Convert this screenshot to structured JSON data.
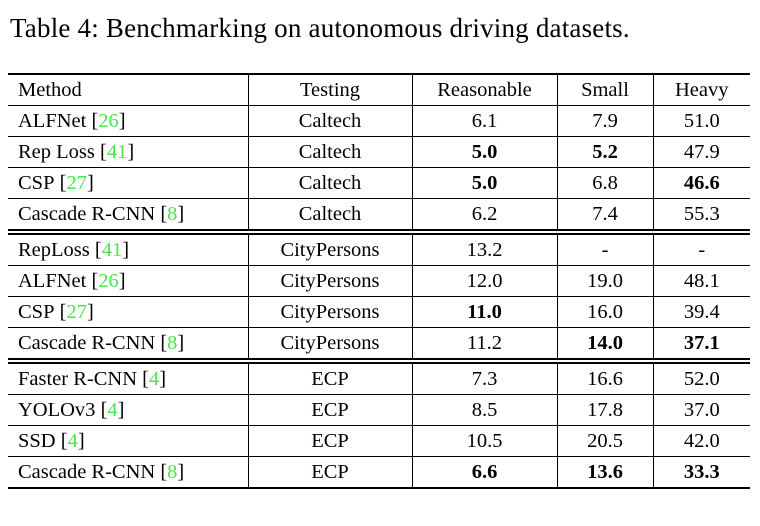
{
  "caption": {
    "text": "Table 4: Benchmarking on autonomous driving datasets."
  },
  "colors": {
    "citation": "#4BE44B",
    "text": "#000000",
    "background": "#FFFFFF"
  },
  "ui": {
    "lbracket": "[",
    "rbracket": "]"
  },
  "table": {
    "columns": [
      "Method",
      "Testing",
      "Reasonable",
      "Small",
      "Heavy"
    ],
    "rows": [
      {
        "method": "ALFNet",
        "cite": "26",
        "testing": "Caltech",
        "reasonable": "6.1",
        "small": "7.9",
        "heavy": "51.0",
        "bold": {}
      },
      {
        "method": "Rep Loss",
        "cite": "41",
        "testing": "Caltech",
        "reasonable": "5.0",
        "small": "5.2",
        "heavy": "47.9",
        "bold": {
          "reasonable": true,
          "small": true
        }
      },
      {
        "method": "CSP",
        "cite": "27",
        "testing": "Caltech",
        "reasonable": "5.0",
        "small": "6.8",
        "heavy": "46.6",
        "bold": {
          "reasonable": true,
          "heavy": true
        }
      },
      {
        "method": "Cascade R-CNN",
        "cite": "8",
        "testing": "Caltech",
        "reasonable": "6.2",
        "small": "7.4",
        "heavy": "55.3",
        "bold": {}
      },
      {
        "method": "RepLoss",
        "cite": "41",
        "testing": "CityPersons",
        "reasonable": "13.2",
        "small": "-",
        "heavy": "-",
        "bold": {},
        "new_group": true
      },
      {
        "method": "ALFNet",
        "cite": "26",
        "testing": "CityPersons",
        "reasonable": "12.0",
        "small": "19.0",
        "heavy": "48.1",
        "bold": {}
      },
      {
        "method": "CSP",
        "cite": "27",
        "testing": "CityPersons",
        "reasonable": "11.0",
        "small": "16.0",
        "heavy": "39.4",
        "bold": {
          "reasonable": true
        }
      },
      {
        "method": "Cascade R-CNN",
        "cite": "8",
        "testing": "CityPersons",
        "reasonable": "11.2",
        "small": "14.0",
        "heavy": "37.1",
        "bold": {
          "small": true,
          "heavy": true
        }
      },
      {
        "method": "Faster R-CNN",
        "cite": "4",
        "testing": "ECP",
        "reasonable": "7.3",
        "small": "16.6",
        "heavy": "52.0",
        "bold": {},
        "new_group": true
      },
      {
        "method": "YOLOv3",
        "cite": "4",
        "testing": "ECP",
        "reasonable": "8.5",
        "small": "17.8",
        "heavy": "37.0",
        "bold": {}
      },
      {
        "method": "SSD",
        "cite": "4",
        "testing": "ECP",
        "reasonable": "10.5",
        "small": "20.5",
        "heavy": "42.0",
        "bold": {}
      },
      {
        "method": "Cascade R-CNN",
        "cite": "8",
        "testing": "ECP",
        "reasonable": "6.6",
        "small": "13.6",
        "heavy": "33.3",
        "bold": {
          "reasonable": true,
          "small": true,
          "heavy": true
        }
      }
    ]
  }
}
